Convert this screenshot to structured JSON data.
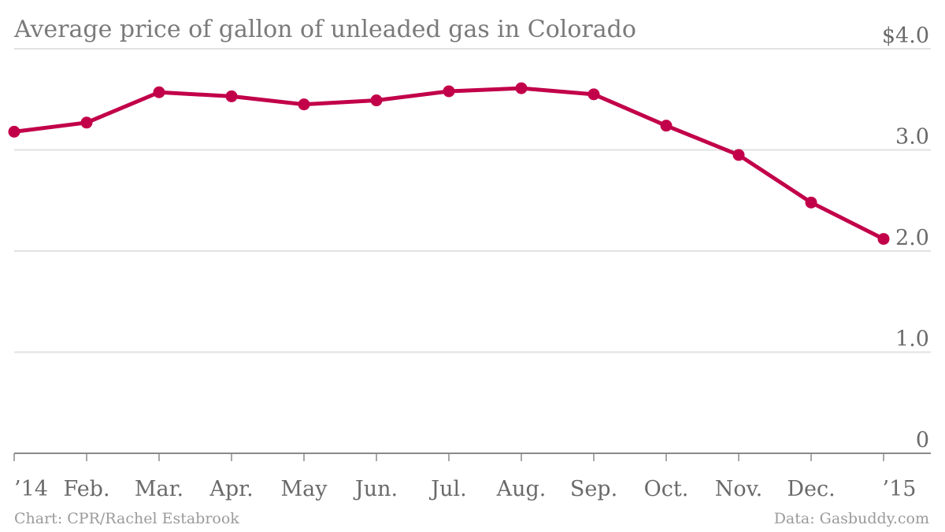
{
  "chart_data": {
    "type": "line",
    "title": "Average price of gallon of unleaded gas in Colorado",
    "xlabel": "",
    "ylabel": "",
    "x": [
      "'14",
      "Feb.",
      "Mar.",
      "Apr.",
      "May",
      "Jun.",
      "Jul.",
      "Aug.",
      "Sep.",
      "Oct.",
      "Nov.",
      "Dec.",
      "'15"
    ],
    "x_tick_labels": [
      "’14",
      "Feb.",
      "Mar.",
      "Apr.",
      "May",
      "Jun.",
      "Jul.",
      "Aug.",
      "Sep.",
      "Oct.",
      "Nov.",
      "Dec.",
      "’15"
    ],
    "series": [
      {
        "values": [
          3.18,
          3.27,
          3.57,
          3.53,
          3.45,
          3.49,
          3.58,
          3.61,
          3.55,
          3.24,
          2.95,
          2.48,
          2.12
        ],
        "color": "#c2004a"
      }
    ],
    "ylim": [
      0,
      4
    ],
    "y_tick_values": [
      0,
      1,
      2,
      3,
      4
    ],
    "y_tick_labels": [
      "0",
      "1.0",
      "2.0",
      "3.0",
      "$4.0"
    ],
    "grid": true
  },
  "footer": {
    "source_left": "Chart: CPR/Rachel Estabrook",
    "source_right": "Data: Gasbuddy.com"
  }
}
